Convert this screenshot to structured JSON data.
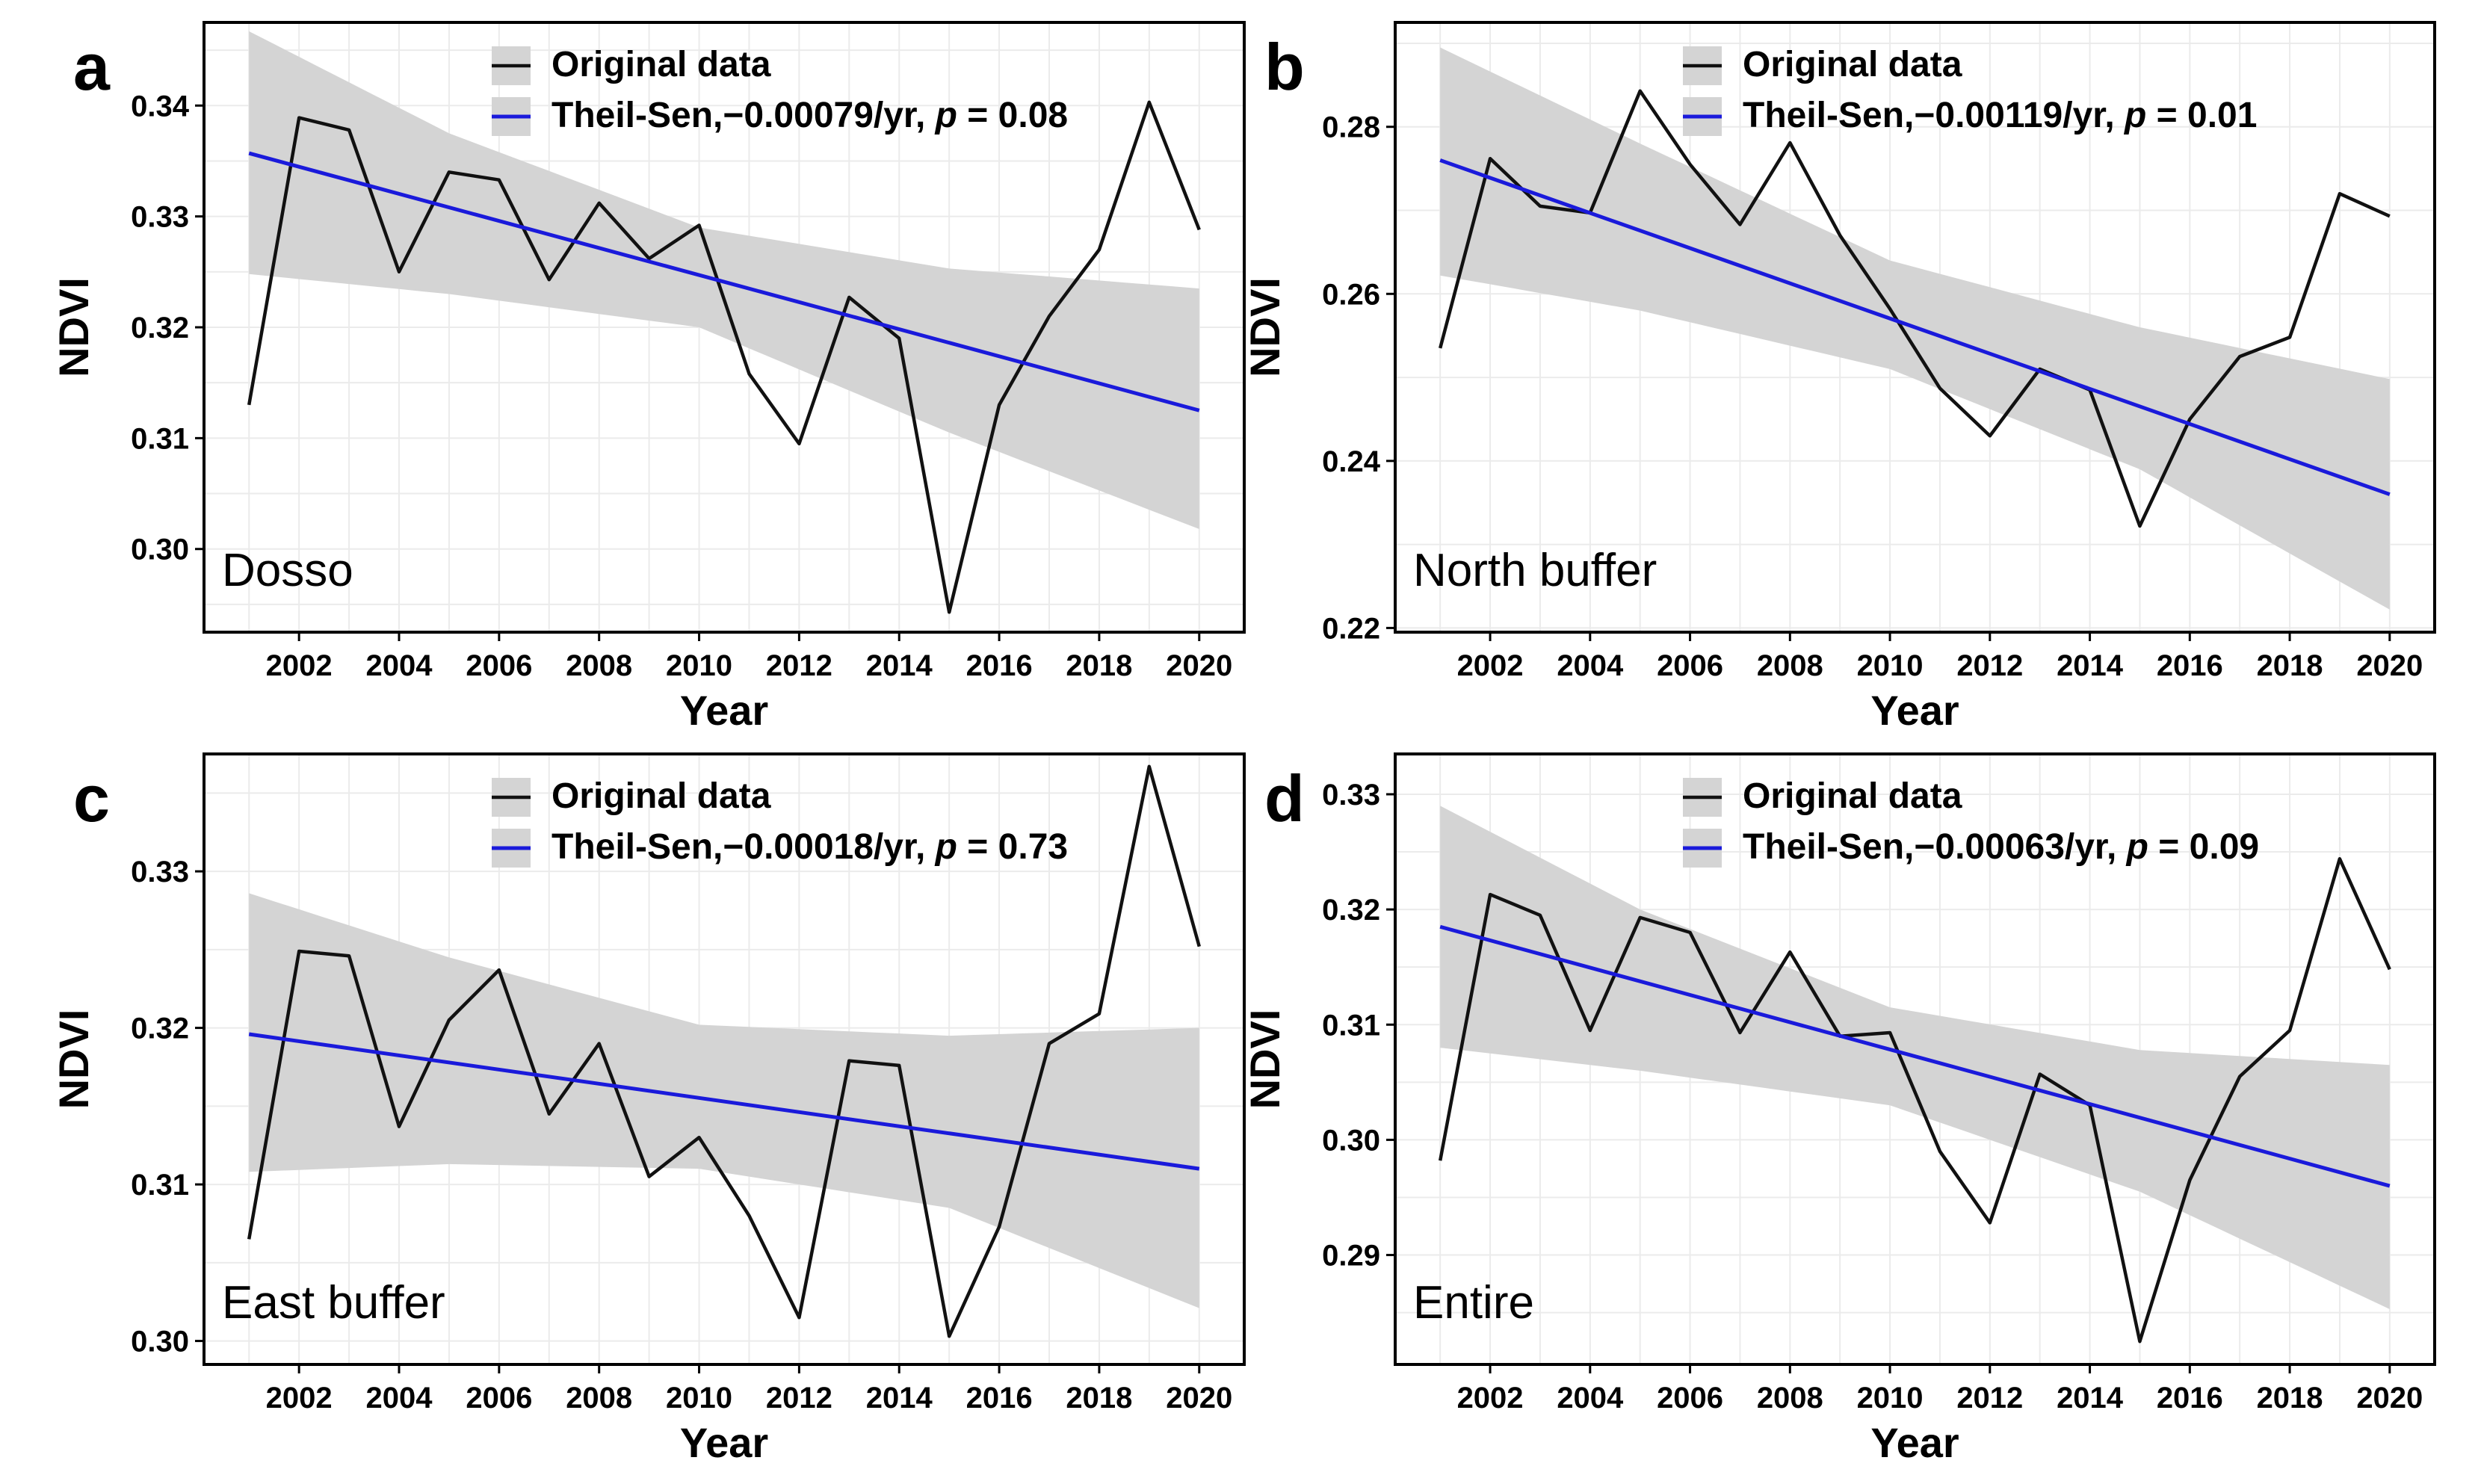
{
  "colors": {
    "original": "#111111",
    "trend": "#1a1adb",
    "ci": "#d4d4d4",
    "grid": "#ebebeb"
  },
  "chart_data": [
    {
      "type": "line",
      "panel_letter": "a",
      "region": "Dosso",
      "xlabel": "Year",
      "ylabel": "NDVI",
      "xlim": [
        2000.1,
        2020.9
      ],
      "ylim": [
        0.2925,
        0.3475
      ],
      "x_ticks": [
        2002,
        2004,
        2006,
        2008,
        2010,
        2012,
        2014,
        2016,
        2018,
        2020
      ],
      "y_ticks": [
        0.3,
        0.31,
        0.32,
        0.33,
        0.34
      ],
      "y_tick_labels": [
        "0.30",
        "0.31",
        "0.32",
        "0.33",
        "0.34"
      ],
      "legend_position": "top-center",
      "grid": true,
      "series": [
        {
          "name": "Original data",
          "x": [
            2001,
            2002,
            2003,
            2004,
            2005,
            2006,
            2007,
            2008,
            2009,
            2010,
            2011,
            2012,
            2013,
            2014,
            2015,
            2016,
            2017,
            2018,
            2019,
            2020
          ],
          "values": [
            0.313,
            0.3389,
            0.3378,
            0.325,
            0.334,
            0.3333,
            0.3243,
            0.3312,
            0.3262,
            0.3292,
            0.3158,
            0.3095,
            0.3227,
            0.319,
            0.2943,
            0.313,
            0.321,
            0.327,
            0.3403,
            0.3288
          ]
        },
        {
          "name": "Theil-Sen,−0.00079/yr,",
          "p_label": "p = 0.08",
          "x": [
            2001,
            2020
          ],
          "values": [
            0.3357,
            0.3125
          ]
        }
      ],
      "confidence_band": {
        "x": [
          2001,
          2005,
          2010,
          2015,
          2020
        ],
        "upper": [
          0.3467,
          0.3375,
          0.329,
          0.3253,
          0.3235
        ],
        "lower": [
          0.3248,
          0.323,
          0.32,
          0.3105,
          0.3018
        ]
      }
    },
    {
      "type": "line",
      "panel_letter": "b",
      "region": "North buffer",
      "xlabel": "Year",
      "ylabel": "NDVI",
      "xlim": [
        2000.1,
        2020.9
      ],
      "ylim": [
        0.2195,
        0.2925
      ],
      "x_ticks": [
        2002,
        2004,
        2006,
        2008,
        2010,
        2012,
        2014,
        2016,
        2018,
        2020
      ],
      "y_ticks": [
        0.22,
        0.24,
        0.26,
        0.28
      ],
      "y_tick_labels": [
        "0.22",
        "0.24",
        "0.26",
        "0.28"
      ],
      "legend_position": "top-center",
      "grid": true,
      "series": [
        {
          "name": "Original data",
          "x": [
            2001,
            2002,
            2003,
            2004,
            2005,
            2006,
            2007,
            2008,
            2009,
            2010,
            2011,
            2012,
            2013,
            2014,
            2015,
            2016,
            2017,
            2018,
            2019,
            2020
          ],
          "values": [
            0.2535,
            0.2762,
            0.2705,
            0.2697,
            0.2843,
            0.2755,
            0.2683,
            0.2781,
            0.267,
            0.2582,
            0.2487,
            0.243,
            0.251,
            0.2485,
            0.2322,
            0.245,
            0.2525,
            0.2548,
            0.272,
            0.2693
          ]
        },
        {
          "name": "Theil-Sen,−0.00119/yr,",
          "p_label": "p = 0.01",
          "x": [
            2001,
            2020
          ],
          "values": [
            0.276,
            0.236
          ]
        }
      ],
      "confidence_band": {
        "x": [
          2001,
          2005,
          2010,
          2015,
          2020
        ],
        "upper": [
          0.2895,
          0.278,
          0.264,
          0.256,
          0.2498
        ],
        "lower": [
          0.2622,
          0.258,
          0.251,
          0.239,
          0.2222
        ]
      }
    },
    {
      "type": "line",
      "panel_letter": "c",
      "region": "East buffer",
      "xlabel": "Year",
      "ylabel": "NDVI",
      "xlim": [
        2000.1,
        2020.9
      ],
      "ylim": [
        0.2985,
        0.3375
      ],
      "x_ticks": [
        2002,
        2004,
        2006,
        2008,
        2010,
        2012,
        2014,
        2016,
        2018,
        2020
      ],
      "y_ticks": [
        0.3,
        0.31,
        0.32,
        0.33
      ],
      "y_tick_labels": [
        "0.30",
        "0.31",
        "0.32",
        "0.33"
      ],
      "legend_position": "top-center",
      "grid": true,
      "series": [
        {
          "name": "Original data",
          "x": [
            2001,
            2002,
            2003,
            2004,
            2005,
            2006,
            2007,
            2008,
            2009,
            2010,
            2011,
            2012,
            2013,
            2014,
            2015,
            2016,
            2017,
            2018,
            2019,
            2020
          ],
          "values": [
            0.3065,
            0.3249,
            0.3246,
            0.3137,
            0.3205,
            0.3237,
            0.3145,
            0.319,
            0.3105,
            0.313,
            0.308,
            0.3015,
            0.3179,
            0.3176,
            0.3003,
            0.3073,
            0.319,
            0.3209,
            0.3367,
            0.3252
          ]
        },
        {
          "name": "Theil-Sen,−0.00018/yr,",
          "p_label": "p = 0.73",
          "x": [
            2001,
            2020
          ],
          "values": [
            0.3196,
            0.311
          ]
        }
      ],
      "confidence_band": {
        "x": [
          2001,
          2005,
          2010,
          2015,
          2020
        ],
        "upper": [
          0.3286,
          0.3245,
          0.3202,
          0.3195,
          0.32
        ],
        "lower": [
          0.3108,
          0.3113,
          0.311,
          0.3085,
          0.3021
        ]
      }
    },
    {
      "type": "line",
      "panel_letter": "d",
      "region": "Entire",
      "xlabel": "Year",
      "ylabel": "NDVI",
      "xlim": [
        2000.1,
        2020.9
      ],
      "ylim": [
        0.2805,
        0.3335
      ],
      "x_ticks": [
        2002,
        2004,
        2006,
        2008,
        2010,
        2012,
        2014,
        2016,
        2018,
        2020
      ],
      "y_ticks": [
        0.29,
        0.3,
        0.31,
        0.32,
        0.33
      ],
      "y_tick_labels": [
        "0.29",
        "0.30",
        "0.31",
        "0.32",
        "0.33"
      ],
      "legend_position": "top-center",
      "grid": true,
      "series": [
        {
          "name": "Original data",
          "x": [
            2001,
            2002,
            2003,
            2004,
            2005,
            2006,
            2007,
            2008,
            2009,
            2010,
            2011,
            2012,
            2013,
            2014,
            2015,
            2016,
            2017,
            2018,
            2019,
            2020
          ],
          "values": [
            0.2982,
            0.3213,
            0.3195,
            0.3095,
            0.3193,
            0.318,
            0.3093,
            0.3163,
            0.309,
            0.3093,
            0.299,
            0.2928,
            0.3057,
            0.303,
            0.2825,
            0.2965,
            0.3055,
            0.3095,
            0.3244,
            0.3148
          ]
        },
        {
          "name": "Theil-Sen,−0.00063/yr,",
          "p_label": "p = 0.09",
          "x": [
            2001,
            2020
          ],
          "values": [
            0.3185,
            0.296
          ]
        }
      ],
      "confidence_band": {
        "x": [
          2001,
          2005,
          2010,
          2015,
          2020
        ],
        "upper": [
          0.329,
          0.32,
          0.3115,
          0.3078,
          0.3065
        ],
        "lower": [
          0.308,
          0.306,
          0.303,
          0.2955,
          0.2853
        ]
      }
    }
  ]
}
